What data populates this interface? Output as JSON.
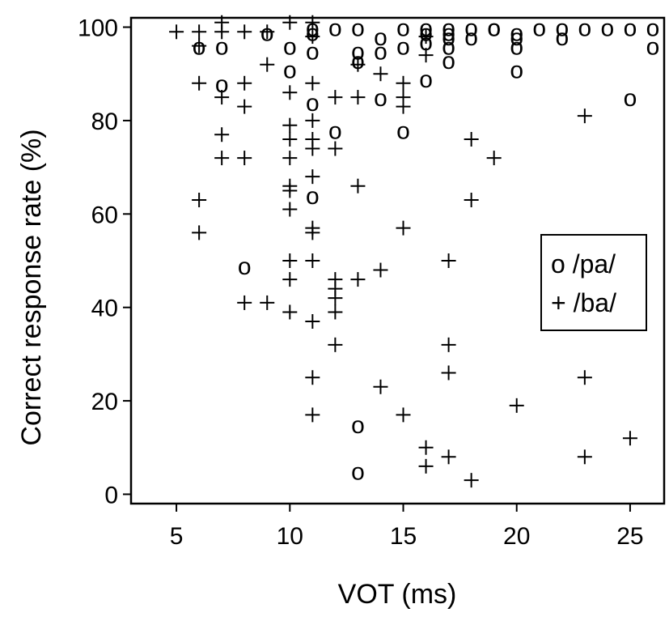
{
  "chart_data": {
    "type": "scatter",
    "title": "",
    "xlabel": "VOT (ms)",
    "ylabel": "Correct response rate (%)",
    "xlim": [
      3,
      26.5
    ],
    "ylim": [
      -2,
      102
    ],
    "xticks": [
      5,
      10,
      15,
      20,
      25
    ],
    "yticks": [
      0,
      20,
      40,
      60,
      80,
      100
    ],
    "xtick_labels": [
      "5",
      "10",
      "15",
      "20",
      "25"
    ],
    "ytick_labels": [
      "0",
      "20",
      "40",
      "60",
      "80",
      "100"
    ],
    "grid": false,
    "legend_position": "right",
    "series": [
      {
        "name": "/pa/",
        "marker": "o",
        "legend_label": "o /pa/",
        "points": [
          [
            6,
            96
          ],
          [
            7,
            88
          ],
          [
            7,
            96
          ],
          [
            9,
            99
          ],
          [
            10,
            91
          ],
          [
            10,
            96
          ],
          [
            11,
            95
          ],
          [
            11,
            84
          ],
          [
            11,
            99
          ],
          [
            11,
            100
          ],
          [
            12,
            78
          ],
          [
            12,
            100
          ],
          [
            13,
            100
          ],
          [
            13,
            95
          ],
          [
            13,
            93
          ],
          [
            14,
            98
          ],
          [
            14,
            95
          ],
          [
            14,
            85
          ],
          [
            15,
            100
          ],
          [
            15,
            96
          ],
          [
            15,
            78
          ],
          [
            16,
            100
          ],
          [
            16,
            99
          ],
          [
            16,
            97
          ],
          [
            16,
            89
          ],
          [
            17,
            100
          ],
          [
            17,
            99
          ],
          [
            17,
            98
          ],
          [
            17,
            96
          ],
          [
            17,
            93
          ],
          [
            18,
            100
          ],
          [
            18,
            98
          ],
          [
            19,
            100
          ],
          [
            19,
            100
          ],
          [
            20,
            99
          ],
          [
            20,
            98
          ],
          [
            20,
            96
          ],
          [
            20,
            91
          ],
          [
            21,
            100
          ],
          [
            22,
            100
          ],
          [
            22,
            98
          ],
          [
            23,
            100
          ],
          [
            24,
            100
          ],
          [
            25,
            100
          ],
          [
            25,
            85
          ],
          [
            26,
            100
          ],
          [
            26,
            96
          ],
          [
            11,
            64
          ],
          [
            8,
            49
          ],
          [
            13,
            15
          ],
          [
            13,
            5
          ]
        ]
      },
      {
        "name": "/ba/",
        "marker": "+",
        "legend_label": "+ /ba/",
        "points": [
          [
            5,
            99
          ],
          [
            6,
            99
          ],
          [
            6,
            96
          ],
          [
            6,
            88
          ],
          [
            6,
            63
          ],
          [
            6,
            56
          ],
          [
            7,
            101
          ],
          [
            7,
            99
          ],
          [
            7,
            85
          ],
          [
            7,
            77
          ],
          [
            7,
            72
          ],
          [
            8,
            99
          ],
          [
            8,
            88
          ],
          [
            8,
            83
          ],
          [
            8,
            72
          ],
          [
            8,
            41
          ],
          [
            9,
            99
          ],
          [
            9,
            92
          ],
          [
            9,
            41
          ],
          [
            10,
            101
          ],
          [
            10,
            86
          ],
          [
            10,
            79
          ],
          [
            10,
            76
          ],
          [
            10,
            72
          ],
          [
            10,
            66
          ],
          [
            10,
            65
          ],
          [
            10,
            61
          ],
          [
            10,
            50
          ],
          [
            10,
            46
          ],
          [
            10,
            39
          ],
          [
            11,
            101
          ],
          [
            11,
            98
          ],
          [
            11,
            88
          ],
          [
            11,
            80
          ],
          [
            11,
            76
          ],
          [
            11,
            74
          ],
          [
            11,
            68
          ],
          [
            11,
            57
          ],
          [
            11,
            56
          ],
          [
            11,
            50
          ],
          [
            11,
            37
          ],
          [
            11,
            25
          ],
          [
            11,
            17
          ],
          [
            12,
            85
          ],
          [
            12,
            74
          ],
          [
            12,
            46
          ],
          [
            12,
            44
          ],
          [
            12,
            42
          ],
          [
            12,
            39
          ],
          [
            12,
            32
          ],
          [
            13,
            92
          ],
          [
            13,
            85
          ],
          [
            13,
            66
          ],
          [
            13,
            46
          ],
          [
            14,
            90
          ],
          [
            14,
            48
          ],
          [
            14,
            23
          ],
          [
            15,
            88
          ],
          [
            15,
            85
          ],
          [
            15,
            83
          ],
          [
            15,
            57
          ],
          [
            15,
            17
          ],
          [
            16,
            98
          ],
          [
            16,
            94
          ],
          [
            16,
            10
          ],
          [
            16,
            6
          ],
          [
            17,
            50
          ],
          [
            17,
            32
          ],
          [
            17,
            26
          ],
          [
            17,
            8
          ],
          [
            18,
            76
          ],
          [
            18,
            63
          ],
          [
            18,
            3
          ],
          [
            19,
            72
          ],
          [
            20,
            19
          ],
          [
            23,
            81
          ],
          [
            23,
            25
          ],
          [
            23,
            8
          ],
          [
            25,
            12
          ]
        ]
      }
    ]
  }
}
